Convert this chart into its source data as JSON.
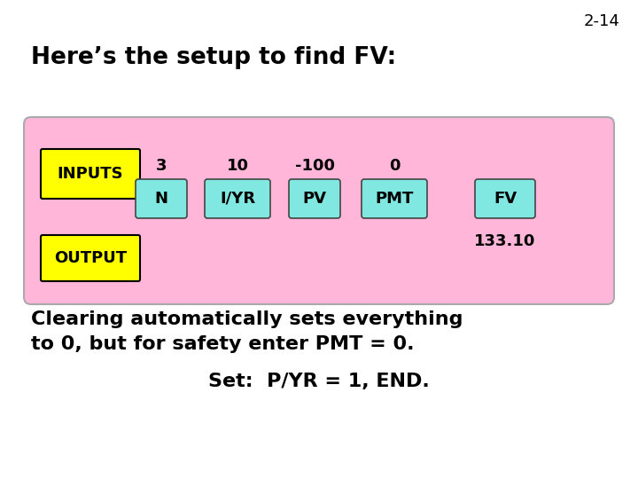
{
  "slide_num": "2-14",
  "title": "Here’s the setup to find FV:",
  "bg_color": "#ffffff",
  "pink_box_color": "#ffb6d9",
  "yellow_label_color": "#ffff00",
  "cyan_key_color": "#80e8e0",
  "inputs_label": "INPUTS",
  "output_label": "OUTPUT",
  "keys": [
    "N",
    "I/YR",
    "PV",
    "PMT",
    "FV"
  ],
  "values_above": [
    "3",
    "10",
    "-100",
    "0",
    ""
  ],
  "output_value": "133.10",
  "line1": "Clearing automatically sets everything",
  "line2": "to 0, but for safety enter PMT = 0.",
  "line3": "Set:  P/YR = 1, END.",
  "slide_num_fontsize": 13,
  "title_fontsize": 19,
  "label_fontsize": 13,
  "key_fontsize": 13,
  "value_fontsize": 13,
  "output_val_fontsize": 13,
  "body_fontsize": 16,
  "set_fontsize": 16
}
